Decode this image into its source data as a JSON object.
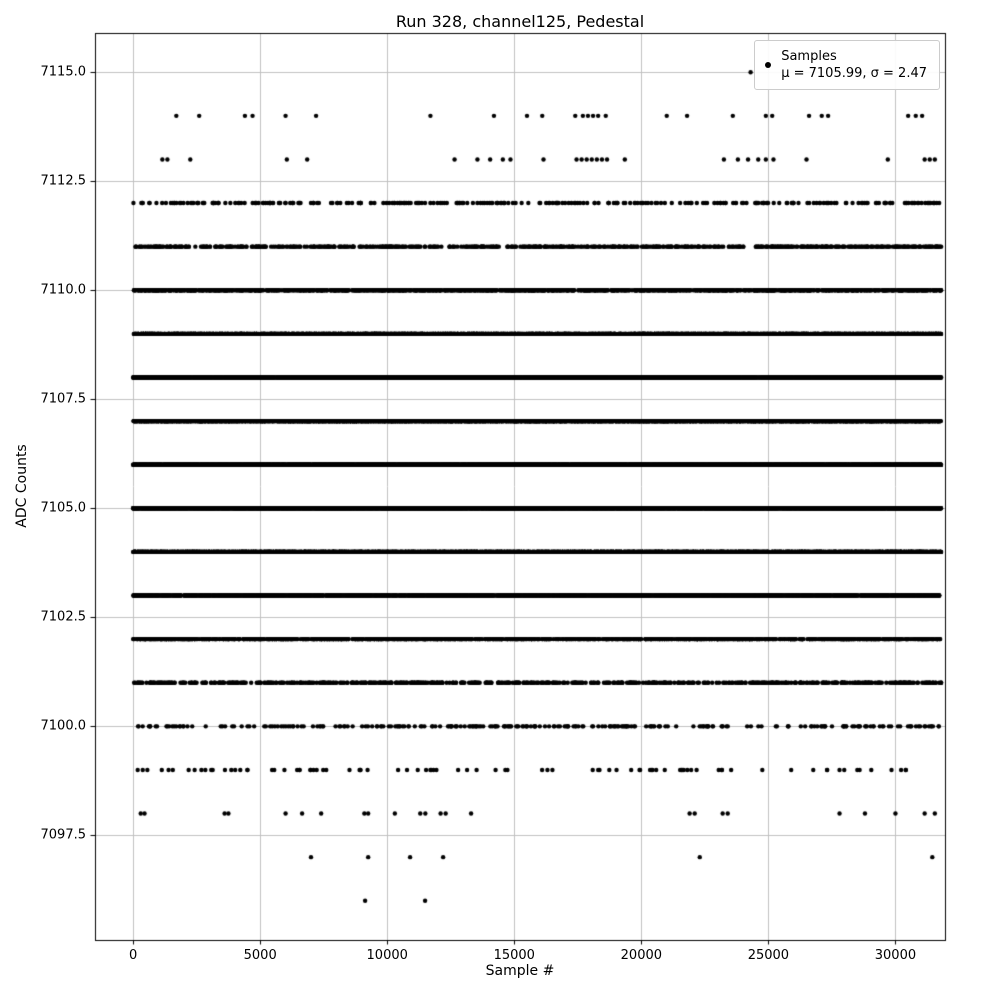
{
  "chart_data": {
    "type": "scatter",
    "title": "Run 328, channel125, Pedestal",
    "xlabel": "Sample #",
    "ylabel": "ADC Counts",
    "xlim": [
      -1500,
      31950
    ],
    "ylim": [
      7095.1,
      7115.9
    ],
    "xticks": [
      0,
      5000,
      10000,
      15000,
      20000,
      25000,
      30000
    ],
    "yticks": [
      7097.5,
      7100.0,
      7102.5,
      7105.0,
      7107.5,
      7110.0,
      7112.5,
      7115.0
    ],
    "x_range": [
      0,
      31800
    ],
    "grid": true,
    "marker_color": "#000000",
    "marker_radius": 2.2,
    "seed": 328,
    "mu": 7105.99,
    "sigma": 2.47,
    "legend": {
      "label": "Samples",
      "stats": "μ = 7105.99, σ = 2.47",
      "position": "upper right"
    },
    "bands": [
      {
        "adc": 7096,
        "points": [
          9130,
          11490
        ]
      },
      {
        "adc": 7097,
        "points": [
          7000,
          9250,
          10900,
          12200,
          22300,
          31450
        ]
      },
      {
        "adc": 7098,
        "points": [
          300,
          450,
          3600,
          3750,
          6000,
          6650,
          7400,
          9100,
          9250,
          10300,
          11300,
          11500,
          12100,
          12300,
          13300,
          21900,
          22100,
          23200,
          23400,
          27800,
          28800,
          30000,
          31150,
          31550
        ]
      },
      {
        "adc": 7099,
        "count": 90
      },
      {
        "adc": 7100,
        "count": 270
      },
      {
        "adc": 7101,
        "count": 680
      },
      {
        "adc": 7102,
        "count": 1400
      },
      {
        "adc": 7103,
        "count": 2500
      },
      {
        "adc": 7104,
        "count": 3800
      },
      {
        "adc": 7105,
        "count": 4850
      },
      {
        "adc": 7106,
        "count": 5300
      },
      {
        "adc": 7107,
        "count": 4850
      },
      {
        "adc": 7108,
        "count": 3800
      },
      {
        "adc": 7109,
        "count": 2500
      },
      {
        "adc": 7110,
        "count": 1450
      },
      {
        "adc": 7111,
        "count": 680
      },
      {
        "adc": 7112,
        "count": 300
      },
      {
        "adc": 7113,
        "points": [
          1150,
          1350,
          2250,
          6050,
          6850,
          12650,
          13550,
          14050,
          14550,
          14850,
          16150,
          17450,
          17650,
          17850,
          18050,
          18250,
          18450,
          18650,
          19350,
          23250,
          23800,
          24200,
          24600,
          24900,
          25200,
          26500,
          29700,
          31150,
          31350,
          31550
        ]
      },
      {
        "adc": 7114,
        "points": [
          1700,
          2600,
          4400,
          4700,
          6000,
          7200,
          11700,
          14200,
          15500,
          16100,
          17400,
          17700,
          17900,
          18100,
          18300,
          18600,
          21000,
          21800,
          23600,
          24900,
          25150,
          26600,
          27100,
          27350,
          30500,
          30800,
          31050
        ]
      },
      {
        "adc": 7115,
        "points": [
          24300
        ]
      }
    ]
  }
}
